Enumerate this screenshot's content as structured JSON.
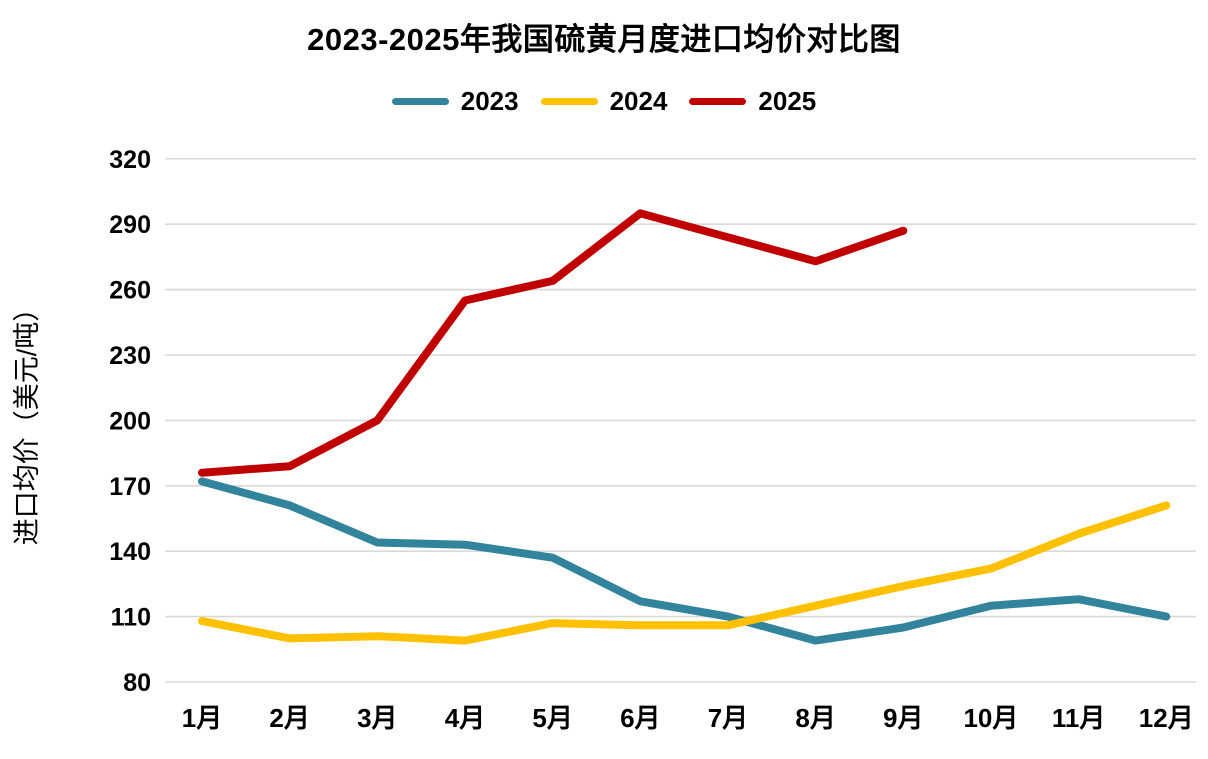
{
  "title": "2023-2025年我国硫黄月度进口均价对比图",
  "colors": {
    "background": "#FFFFFF",
    "gridline": "#D9D9D9",
    "text": "#000000"
  },
  "chart_data": {
    "type": "line",
    "title": "2023-2025年我国硫黄月度进口均价对比图",
    "xlabel": "",
    "ylabel": "进口均价（美元/吨）",
    "ylim": [
      80,
      320
    ],
    "ytick_step": 30,
    "yticks": [
      80,
      110,
      140,
      170,
      200,
      230,
      260,
      290,
      320
    ],
    "categories": [
      "1月",
      "2月",
      "3月",
      "4月",
      "5月",
      "6月",
      "7月",
      "8月",
      "9月",
      "10月",
      "11月",
      "12月"
    ],
    "grid": "horizontal-only",
    "legend_position": "top-center",
    "series": [
      {
        "name": "2023",
        "color": "#31849B",
        "values": [
          172,
          161,
          144,
          143,
          137,
          117,
          110,
          99,
          105,
          115,
          118,
          110
        ]
      },
      {
        "name": "2024",
        "color": "#FFC000",
        "values": [
          108,
          100,
          101,
          99,
          107,
          106,
          106,
          115,
          124,
          132,
          148,
          161
        ]
      },
      {
        "name": "2025",
        "color": "#C00000",
        "values": [
          176,
          179,
          200,
          255,
          264,
          295,
          284,
          273,
          287,
          null,
          null,
          null
        ]
      }
    ]
  }
}
